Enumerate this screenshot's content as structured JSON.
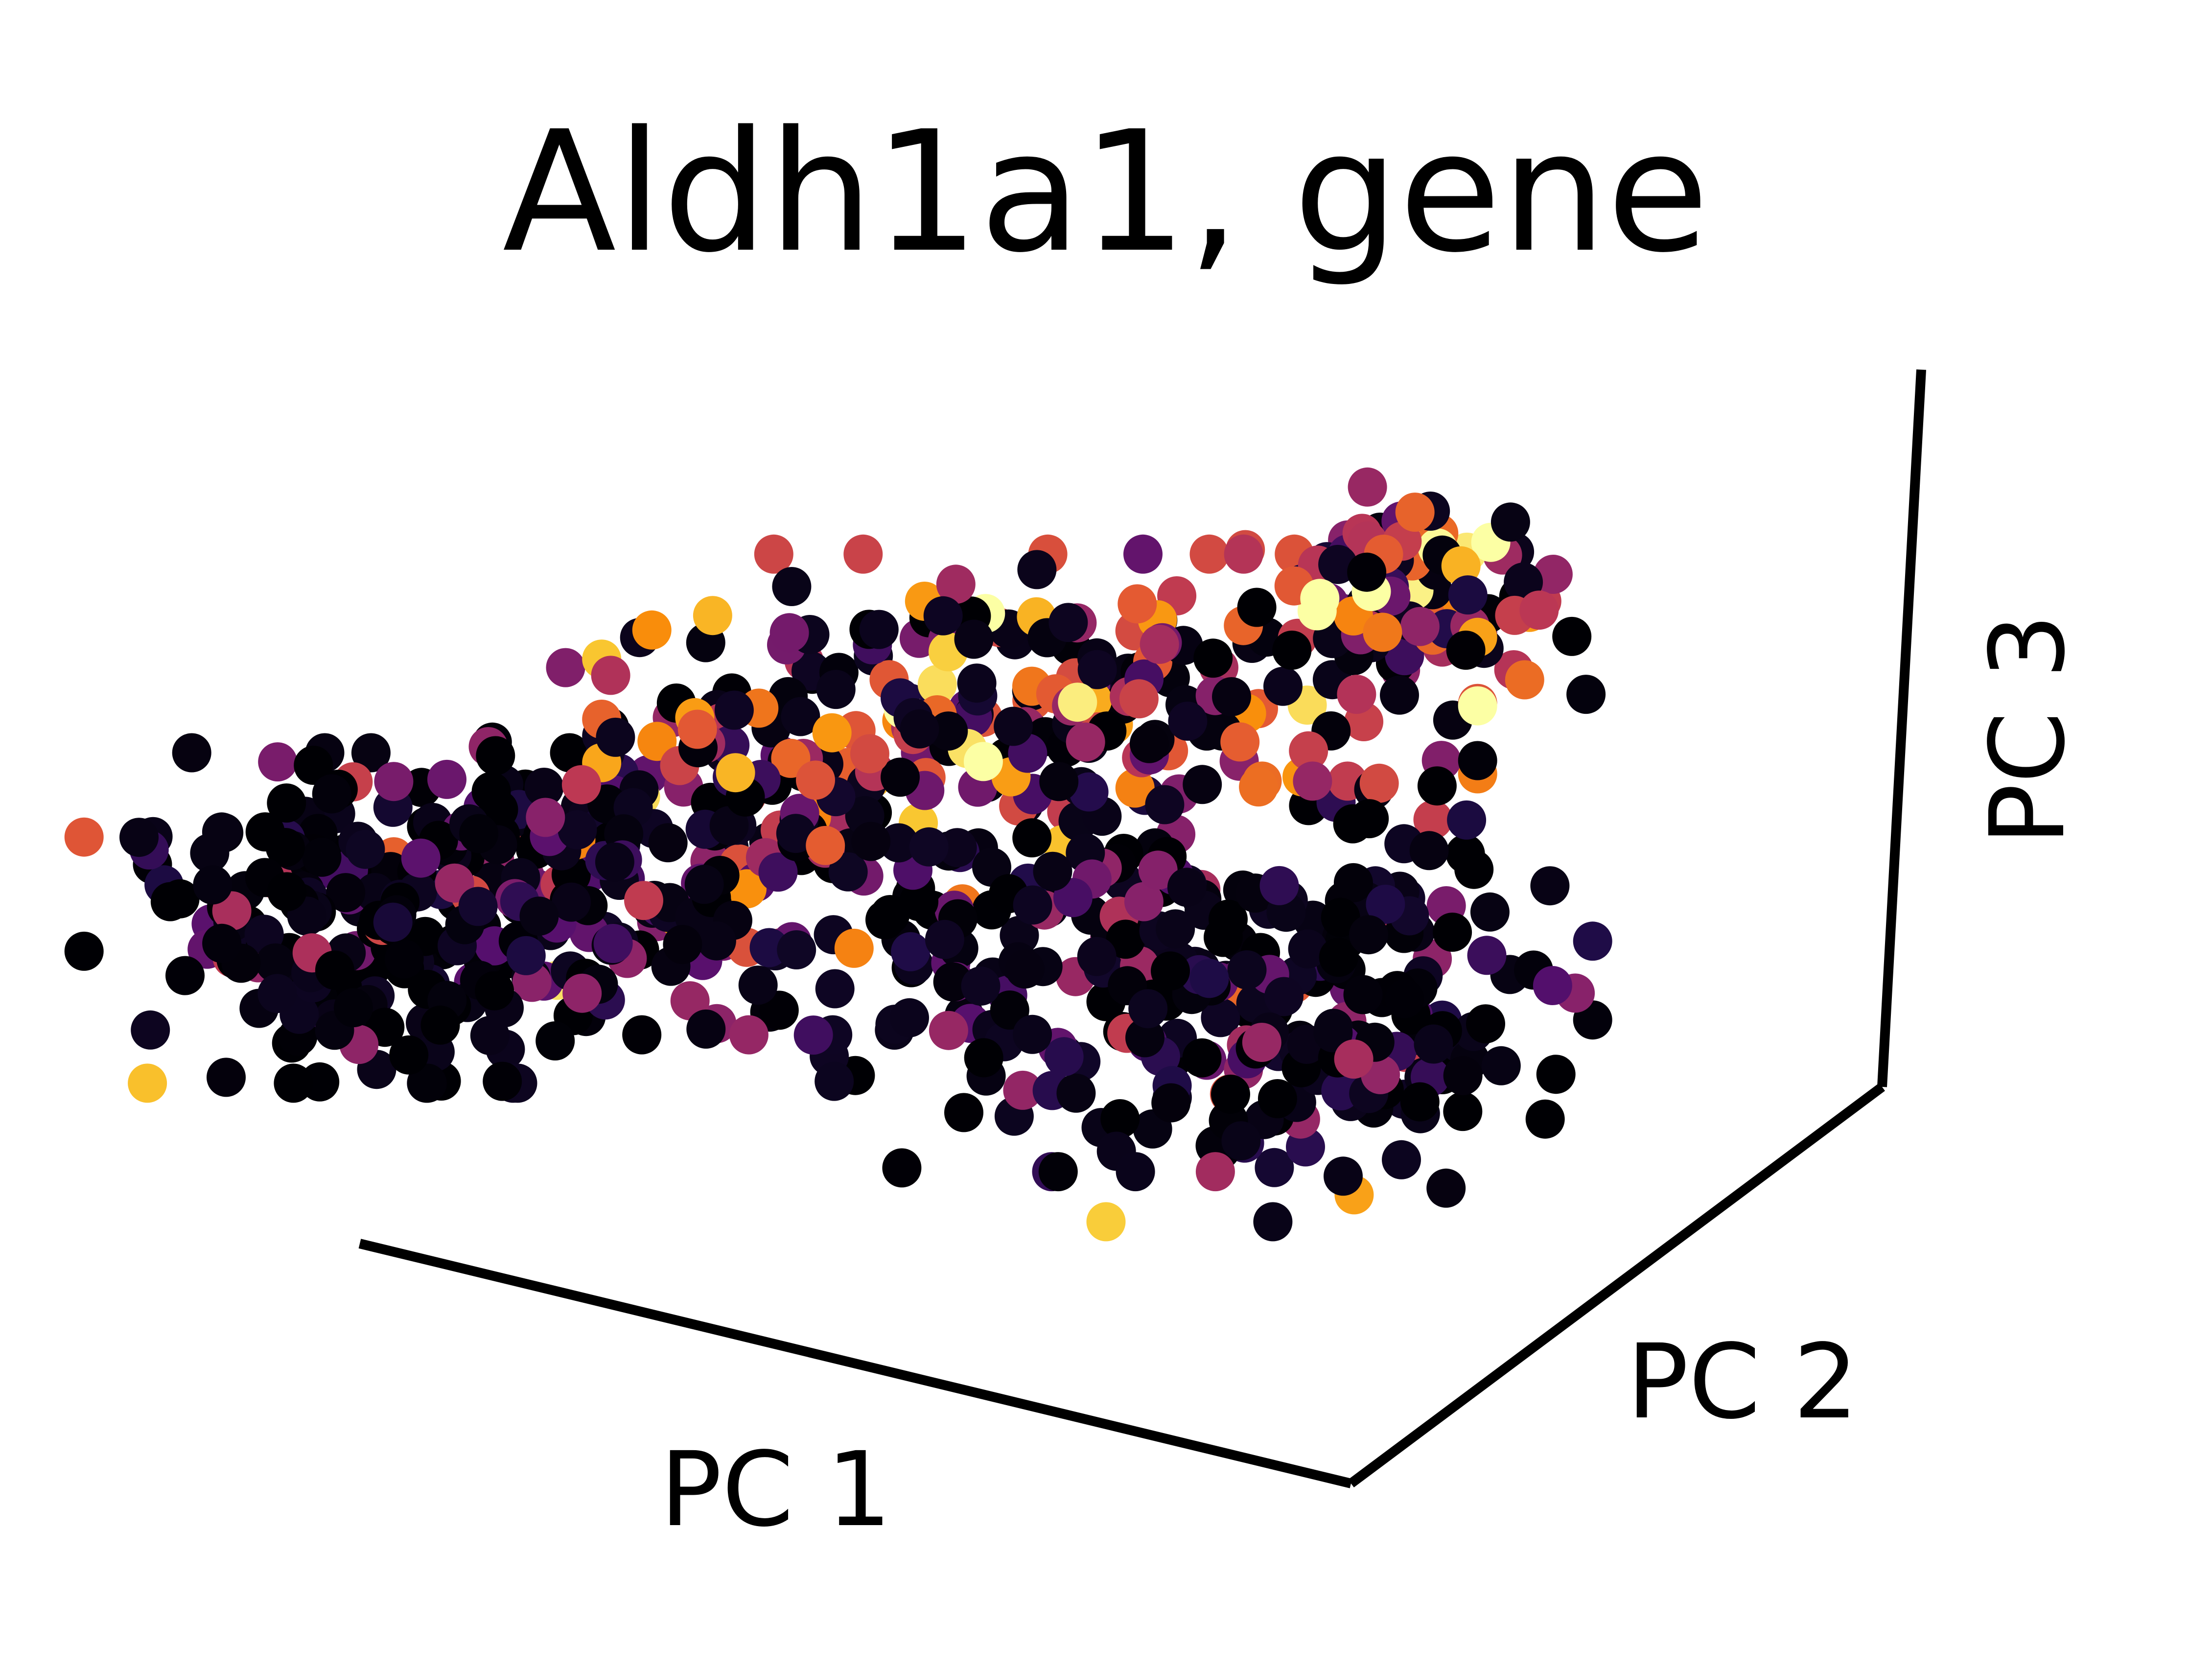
{
  "chart_data": {
    "type": "scatter",
    "projection": "3d",
    "title": "Aldh1a1, gene",
    "axes": {
      "x": {
        "label": "PC 1"
      },
      "y": {
        "label": "PC 2"
      },
      "z": {
        "label": "PC 3"
      }
    },
    "colormap": "inferno",
    "color_value_range": [
      0,
      1
    ],
    "grid": false,
    "legend": false,
    "point_count_approx": 900,
    "clusters": [
      {
        "name_hint": "left lobe",
        "center_2d": [
          0.17,
          0.55
        ],
        "spread": [
          0.06,
          0.045
        ],
        "count": 220,
        "mean_expression": 0.04
      },
      {
        "name_hint": "left-center band",
        "center_2d": [
          0.31,
          0.51
        ],
        "spread": [
          0.06,
          0.05
        ],
        "count": 160,
        "mean_expression": 0.3
      },
      {
        "name_hint": "upper ridge",
        "center_2d": [
          0.47,
          0.42
        ],
        "spread": [
          0.09,
          0.04
        ],
        "count": 190,
        "mean_expression": 0.48
      },
      {
        "name_hint": "upper-right tip",
        "center_2d": [
          0.64,
          0.35
        ],
        "spread": [
          0.035,
          0.03
        ],
        "count": 80,
        "mean_expression": 0.62
      },
      {
        "name_hint": "lower-center",
        "center_2d": [
          0.48,
          0.57
        ],
        "spread": [
          0.06,
          0.06
        ],
        "count": 150,
        "mean_expression": 0.15
      },
      {
        "name_hint": "lower-right lobe",
        "center_2d": [
          0.61,
          0.6
        ],
        "spread": [
          0.05,
          0.06
        ],
        "count": 160,
        "mean_expression": 0.1
      }
    ]
  }
}
